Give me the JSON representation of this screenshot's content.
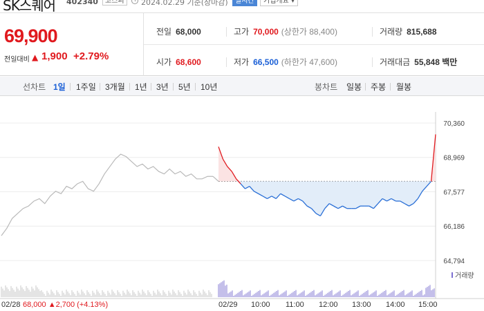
{
  "header": {
    "stock_name": "SK스퀘어",
    "stock_code": "402340",
    "market": "코스피",
    "datetime": "2024.02.29 기준(장마감)",
    "realtime_label": "실시간",
    "company_overview_label": "기업개요 ▾"
  },
  "price": {
    "current": "69,900",
    "change_label": "전일대비",
    "change_direction": "▲",
    "change_amount": "1,900",
    "change_pct": "+2.79%"
  },
  "stats": {
    "prev_close": {
      "label": "전일",
      "value": "68,000"
    },
    "high": {
      "label": "고가",
      "value": "70,000",
      "sub": "(상한가 88,400)"
    },
    "volume": {
      "label": "거래량",
      "value": "815,688"
    },
    "open": {
      "label": "시가",
      "value": "68,600"
    },
    "low": {
      "label": "저가",
      "value": "66,500",
      "sub": "(하한가 47,600)"
    },
    "trade_value": {
      "label": "거래대금",
      "value": "55,848 백만"
    }
  },
  "tabs": {
    "line_chart_label": "선차트",
    "periods": [
      "1일",
      "1주일",
      "3개월",
      "1년",
      "3년",
      "5년",
      "10년"
    ],
    "active_period": "1일",
    "candle_label": "봉차트",
    "candles": [
      "일봉",
      "주봉",
      "월봉"
    ]
  },
  "chart_data": {
    "type": "line",
    "y_ticks": [
      "70,360",
      "68,969",
      "67,577",
      "66,186",
      "64,794"
    ],
    "ylim": [
      64794,
      70360
    ],
    "reference_price": 68000,
    "prev_day_label_date": "02/28",
    "prev_day_summary": "68,000 ▲2,700 (+4.13%)",
    "x_tick_labels": [
      "02/29",
      "10:00",
      "11:00",
      "12:00",
      "13:00",
      "14:00",
      "15:00"
    ],
    "volume_legend": "거래량",
    "prev_day_series": {
      "name": "02/28",
      "values": [
        65800,
        66100,
        66500,
        66700,
        66900,
        67000,
        67200,
        67300,
        67100,
        67400,
        67600,
        67500,
        67800,
        67700,
        67900,
        68000,
        67700,
        67600,
        67900,
        68300,
        68600,
        68900,
        69100,
        69000,
        68800,
        68600,
        68700,
        68500,
        68600,
        68400,
        68300,
        68500,
        68300,
        68400,
        68200,
        68300,
        68100,
        68100,
        68200,
        68200
      ]
    },
    "today_series": {
      "name": "02/29",
      "values": [
        69400,
        68900,
        68600,
        68400,
        68100,
        67900,
        67700,
        67800,
        67600,
        67500,
        67400,
        67300,
        67400,
        67300,
        67500,
        67400,
        67300,
        67200,
        67300,
        67200,
        67000,
        66900,
        66700,
        66600,
        66900,
        67100,
        67000,
        66900,
        67000,
        66900,
        66900,
        66900,
        67000,
        67000,
        67000,
        66900,
        67100,
        67300,
        67200,
        67300,
        67200,
        67200,
        67100,
        67000,
        67100,
        67300,
        67600,
        67800,
        68000,
        69900
      ]
    }
  }
}
